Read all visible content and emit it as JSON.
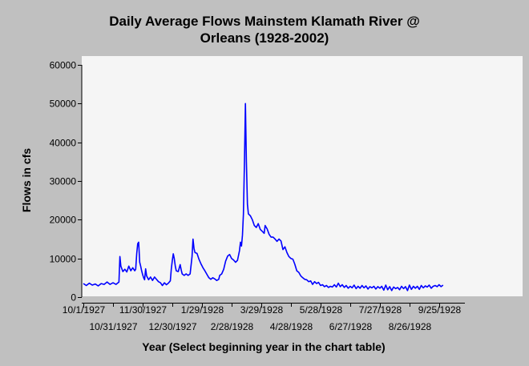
{
  "chart_data": {
    "type": "line",
    "title_lines": [
      "Daily Average Flows Mainstem Klamath River @",
      "Orleans (1928-2002)"
    ],
    "xlabel": "Year (Select beginning year in the chart table)",
    "ylabel": "Flows in cfs",
    "ylim": [
      0,
      60000
    ],
    "y_ticks": [
      0,
      10000,
      20000,
      30000,
      40000,
      50000,
      60000
    ],
    "x_day_range": [
      0,
      365
    ],
    "x_ticks": [
      {
        "label": "10/1/1927",
        "day": 0,
        "row": 1
      },
      {
        "label": "10/31/1927",
        "day": 30,
        "row": 2
      },
      {
        "label": "11/30/1927",
        "day": 60,
        "row": 1
      },
      {
        "label": "12/30/1927",
        "day": 90,
        "row": 2
      },
      {
        "label": "1/29/1928",
        "day": 120,
        "row": 1
      },
      {
        "label": "2/28/1928",
        "day": 150,
        "row": 2
      },
      {
        "label": "3/29/1928",
        "day": 180,
        "row": 1
      },
      {
        "label": "4/28/1928",
        "day": 210,
        "row": 2
      },
      {
        "label": "5/28/1928",
        "day": 240,
        "row": 1
      },
      {
        "label": "6/27/1928",
        "day": 270,
        "row": 2
      },
      {
        "label": "7/27/1928",
        "day": 300,
        "row": 1
      },
      {
        "label": "8/26/1928",
        "day": 330,
        "row": 2
      },
      {
        "label": "9/25/1928",
        "day": 360,
        "row": 1
      }
    ],
    "grid": false,
    "series": [
      {
        "color": "#0000ff",
        "points": [
          [
            0,
            3500
          ],
          [
            3,
            3000
          ],
          [
            6,
            3600
          ],
          [
            9,
            3100
          ],
          [
            12,
            3400
          ],
          [
            15,
            2900
          ],
          [
            18,
            3500
          ],
          [
            21,
            3300
          ],
          [
            24,
            3900
          ],
          [
            27,
            3300
          ],
          [
            30,
            3700
          ],
          [
            33,
            3300
          ],
          [
            36,
            3900
          ],
          [
            37,
            10500
          ],
          [
            38,
            8000
          ],
          [
            40,
            6600
          ],
          [
            42,
            7200
          ],
          [
            44,
            6500
          ],
          [
            46,
            8000
          ],
          [
            48,
            6800
          ],
          [
            50,
            7600
          ],
          [
            52,
            6800
          ],
          [
            53,
            7200
          ],
          [
            54,
            11300
          ],
          [
            55,
            13800
          ],
          [
            56,
            14200
          ],
          [
            57,
            9000
          ],
          [
            58,
            8000
          ],
          [
            59,
            6800
          ],
          [
            60,
            5800
          ],
          [
            61,
            5000
          ],
          [
            62,
            4500
          ],
          [
            63,
            7300
          ],
          [
            64,
            5500
          ],
          [
            66,
            4500
          ],
          [
            68,
            5200
          ],
          [
            70,
            4300
          ],
          [
            72,
            5200
          ],
          [
            74,
            4600
          ],
          [
            76,
            4000
          ],
          [
            78,
            3700
          ],
          [
            80,
            3000
          ],
          [
            82,
            3700
          ],
          [
            84,
            3200
          ],
          [
            86,
            3600
          ],
          [
            88,
            4200
          ],
          [
            89,
            7200
          ],
          [
            90,
            9500
          ],
          [
            91,
            11200
          ],
          [
            92,
            10000
          ],
          [
            93,
            8000
          ],
          [
            94,
            6800
          ],
          [
            96,
            6600
          ],
          [
            98,
            8400
          ],
          [
            99,
            7000
          ],
          [
            100,
            6000
          ],
          [
            102,
            5600
          ],
          [
            104,
            6000
          ],
          [
            106,
            5600
          ],
          [
            108,
            6000
          ],
          [
            110,
            10500
          ],
          [
            111,
            15000
          ],
          [
            112,
            12500
          ],
          [
            113,
            11500
          ],
          [
            115,
            11300
          ],
          [
            117,
            9800
          ],
          [
            119,
            8600
          ],
          [
            121,
            7600
          ],
          [
            123,
            6800
          ],
          [
            125,
            5900
          ],
          [
            127,
            5000
          ],
          [
            129,
            4600
          ],
          [
            131,
            5000
          ],
          [
            133,
            4700
          ],
          [
            135,
            4300
          ],
          [
            137,
            4600
          ],
          [
            138,
            5600
          ],
          [
            140,
            6000
          ],
          [
            142,
            7200
          ],
          [
            144,
            9300
          ],
          [
            146,
            10600
          ],
          [
            148,
            11000
          ],
          [
            150,
            10000
          ],
          [
            152,
            9600
          ],
          [
            154,
            9000
          ],
          [
            156,
            9500
          ],
          [
            158,
            12000
          ],
          [
            159,
            14200
          ],
          [
            160,
            13200
          ],
          [
            161,
            16000
          ],
          [
            162,
            21500
          ],
          [
            163,
            35000
          ],
          [
            164,
            50000
          ],
          [
            165,
            35000
          ],
          [
            166,
            24000
          ],
          [
            167,
            21500
          ],
          [
            169,
            21000
          ],
          [
            171,
            20000
          ],
          [
            173,
            18500
          ],
          [
            175,
            18000
          ],
          [
            177,
            19000
          ],
          [
            179,
            17500
          ],
          [
            181,
            17000
          ],
          [
            183,
            16500
          ],
          [
            184,
            18500
          ],
          [
            186,
            17600
          ],
          [
            188,
            16200
          ],
          [
            190,
            15500
          ],
          [
            192,
            15500
          ],
          [
            194,
            15000
          ],
          [
            196,
            14400
          ],
          [
            198,
            15000
          ],
          [
            200,
            14500
          ],
          [
            202,
            12300
          ],
          [
            204,
            13000
          ],
          [
            206,
            11500
          ],
          [
            208,
            10500
          ],
          [
            210,
            10000
          ],
          [
            212,
            9800
          ],
          [
            214,
            8500
          ],
          [
            216,
            6800
          ],
          [
            218,
            6400
          ],
          [
            220,
            5500
          ],
          [
            222,
            5000
          ],
          [
            224,
            4600
          ],
          [
            226,
            4500
          ],
          [
            228,
            4000
          ],
          [
            230,
            4200
          ],
          [
            232,
            3300
          ],
          [
            234,
            4000
          ],
          [
            236,
            3500
          ],
          [
            238,
            3800
          ],
          [
            240,
            3000
          ],
          [
            242,
            3200
          ],
          [
            244,
            2700
          ],
          [
            246,
            3000
          ],
          [
            248,
            2500
          ],
          [
            250,
            2800
          ],
          [
            252,
            2600
          ],
          [
            254,
            3200
          ],
          [
            256,
            2600
          ],
          [
            258,
            3600
          ],
          [
            260,
            2700
          ],
          [
            262,
            3200
          ],
          [
            264,
            2500
          ],
          [
            266,
            3000
          ],
          [
            268,
            2300
          ],
          [
            270,
            2800
          ],
          [
            272,
            2400
          ],
          [
            274,
            3100
          ],
          [
            276,
            2200
          ],
          [
            278,
            2800
          ],
          [
            280,
            2300
          ],
          [
            282,
            3000
          ],
          [
            284,
            2400
          ],
          [
            286,
            2900
          ],
          [
            288,
            2100
          ],
          [
            290,
            2700
          ],
          [
            292,
            2400
          ],
          [
            294,
            2800
          ],
          [
            296,
            2100
          ],
          [
            298,
            2700
          ],
          [
            300,
            2300
          ],
          [
            302,
            2800
          ],
          [
            304,
            1800
          ],
          [
            306,
            3100
          ],
          [
            308,
            1900
          ],
          [
            310,
            2700
          ],
          [
            312,
            1700
          ],
          [
            314,
            2600
          ],
          [
            316,
            2200
          ],
          [
            318,
            2500
          ],
          [
            320,
            1900
          ],
          [
            322,
            2800
          ],
          [
            324,
            2200
          ],
          [
            326,
            2700
          ],
          [
            328,
            1700
          ],
          [
            330,
            3100
          ],
          [
            332,
            2000
          ],
          [
            334,
            2800
          ],
          [
            336,
            2300
          ],
          [
            338,
            2800
          ],
          [
            340,
            2000
          ],
          [
            342,
            3000
          ],
          [
            344,
            2400
          ],
          [
            346,
            2900
          ],
          [
            348,
            2600
          ],
          [
            350,
            3100
          ],
          [
            352,
            2300
          ],
          [
            354,
            2800
          ],
          [
            356,
            3000
          ],
          [
            358,
            2700
          ],
          [
            360,
            3200
          ],
          [
            362,
            2700
          ],
          [
            364,
            3100
          ]
        ]
      }
    ]
  }
}
